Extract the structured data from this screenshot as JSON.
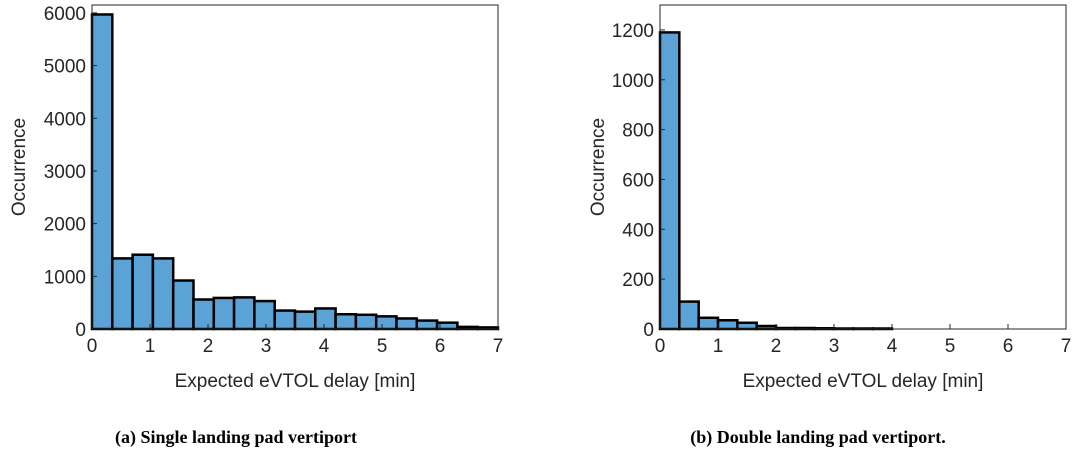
{
  "chart_data": [
    {
      "type": "histogram",
      "caption": "(a) Single landing pad vertiport",
      "xlabel": "Expected eVTOL delay [min]",
      "ylabel": "Occurrence",
      "bins": [
        0,
        0.35,
        0.7,
        1.05,
        1.4,
        1.75,
        2.1,
        2.45,
        2.8,
        3.15,
        3.5,
        3.85,
        4.2,
        4.55,
        4.9,
        5.25,
        5.6,
        5.95,
        6.3,
        6.65,
        7
      ],
      "counts": [
        5970,
        1340,
        1410,
        1340,
        920,
        560,
        590,
        600,
        530,
        350,
        330,
        390,
        280,
        270,
        240,
        200,
        160,
        120,
        40,
        30
      ],
      "color": "#5ba3d6",
      "edgecolor": "#000000",
      "xlim": [
        0,
        7
      ],
      "xticks": [
        0,
        1,
        2,
        3,
        4,
        5,
        6,
        7
      ],
      "ylim": [
        0,
        6150
      ],
      "yticks": [
        0,
        1000,
        2000,
        3000,
        4000,
        5000,
        6000
      ]
    },
    {
      "type": "histogram",
      "caption": "(b) Double landing pad vertiport.",
      "xlabel": "Expected eVTOL delay [min]",
      "ylabel": "Occurrence",
      "bins": [
        0,
        0.333,
        0.667,
        1,
        1.333,
        1.667,
        2,
        2.333,
        2.667,
        3,
        3.333,
        3.667,
        4
      ],
      "counts": [
        1190,
        110,
        45,
        35,
        25,
        12,
        4,
        4,
        3,
        2,
        2,
        2
      ],
      "color": "#5ba3d6",
      "edgecolor": "#000000",
      "xlim": [
        0,
        7
      ],
      "xticks": [
        0,
        1,
        2,
        3,
        4,
        5,
        6,
        7
      ],
      "ylim": [
        0,
        1300
      ],
      "yticks": [
        0,
        200,
        400,
        600,
        800,
        1000,
        1200
      ]
    }
  ]
}
